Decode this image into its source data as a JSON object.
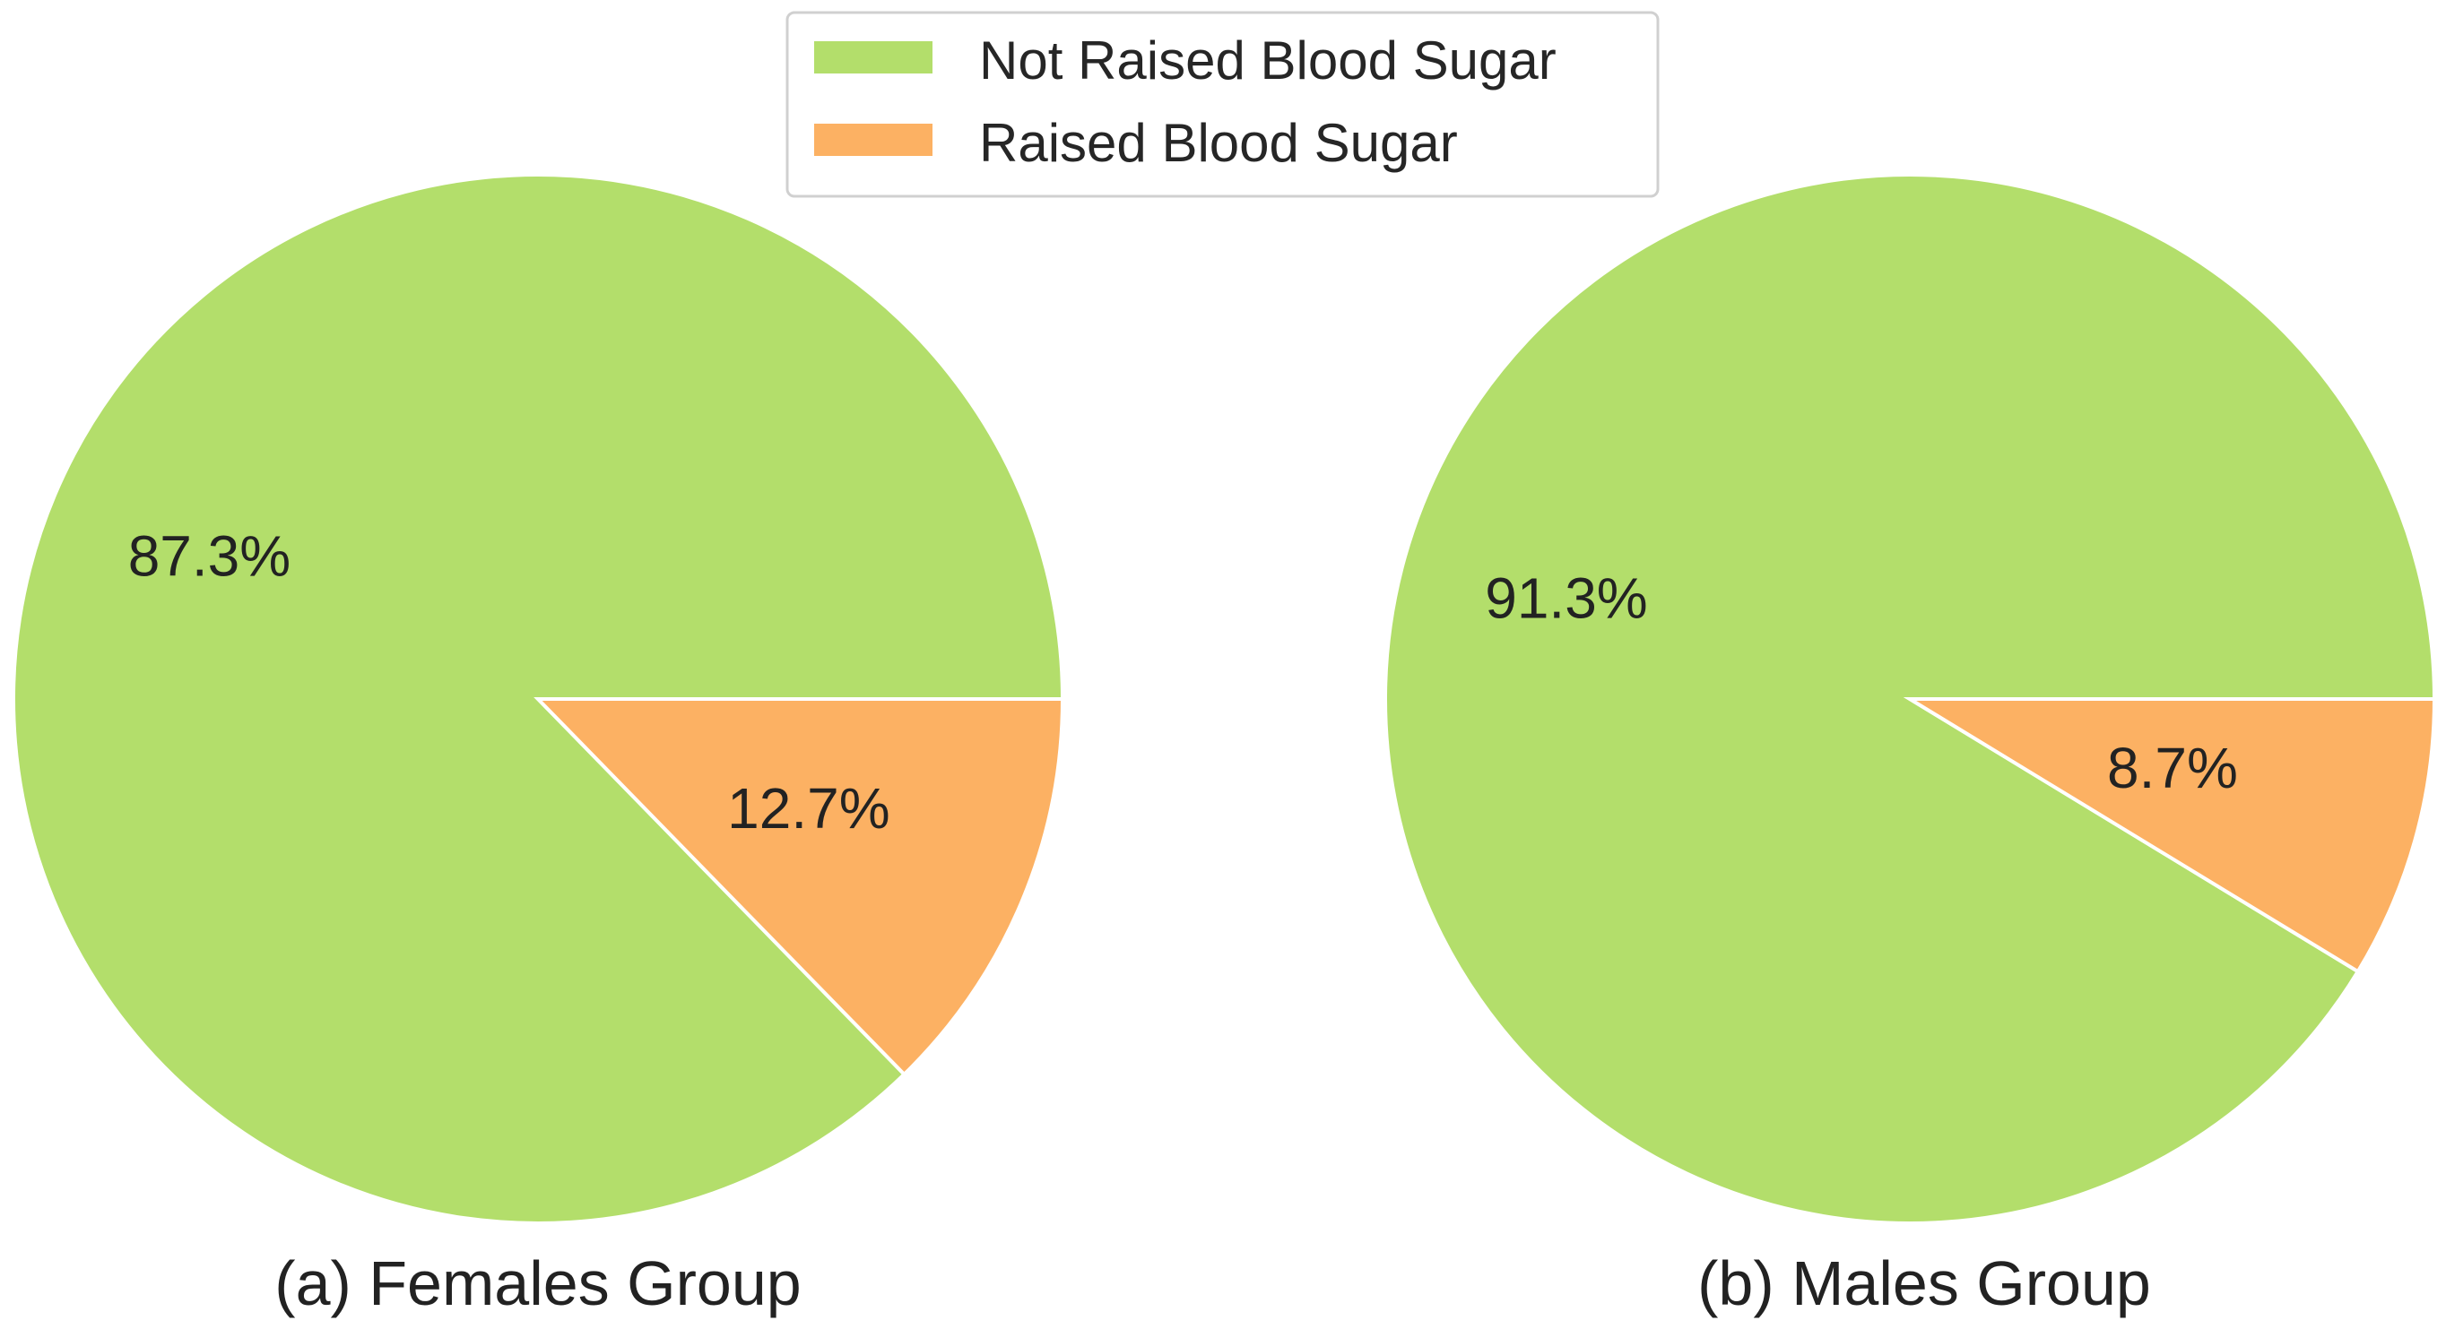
{
  "chart_data": [
    {
      "type": "pie",
      "title": "(a) Females Group",
      "categories": [
        "Not Raised Blood Sugar",
        "Raised Blood Sugar"
      ],
      "values": [
        87.3,
        12.7
      ],
      "labels": [
        "87.3%",
        "12.7%"
      ],
      "colors": [
        "#b3de6b",
        "#fcb163"
      ],
      "start_angle": "clockwise from 3 o'clock",
      "legend": "top-center"
    },
    {
      "type": "pie",
      "title": "(b) Males Group",
      "categories": [
        "Not Raised Blood Sugar",
        "Raised Blood Sugar"
      ],
      "values": [
        91.3,
        8.7
      ],
      "labels": [
        "91.3%",
        "8.7%"
      ],
      "colors": [
        "#b3de6b",
        "#fcb163"
      ],
      "start_angle": "clockwise from 3 o'clock",
      "legend": "top-center"
    }
  ],
  "legend": {
    "items": [
      {
        "label": "Not Raised Blood Sugar",
        "color": "#b3de6b"
      },
      {
        "label": "Raised Blood Sugar",
        "color": "#fcb163"
      }
    ]
  }
}
